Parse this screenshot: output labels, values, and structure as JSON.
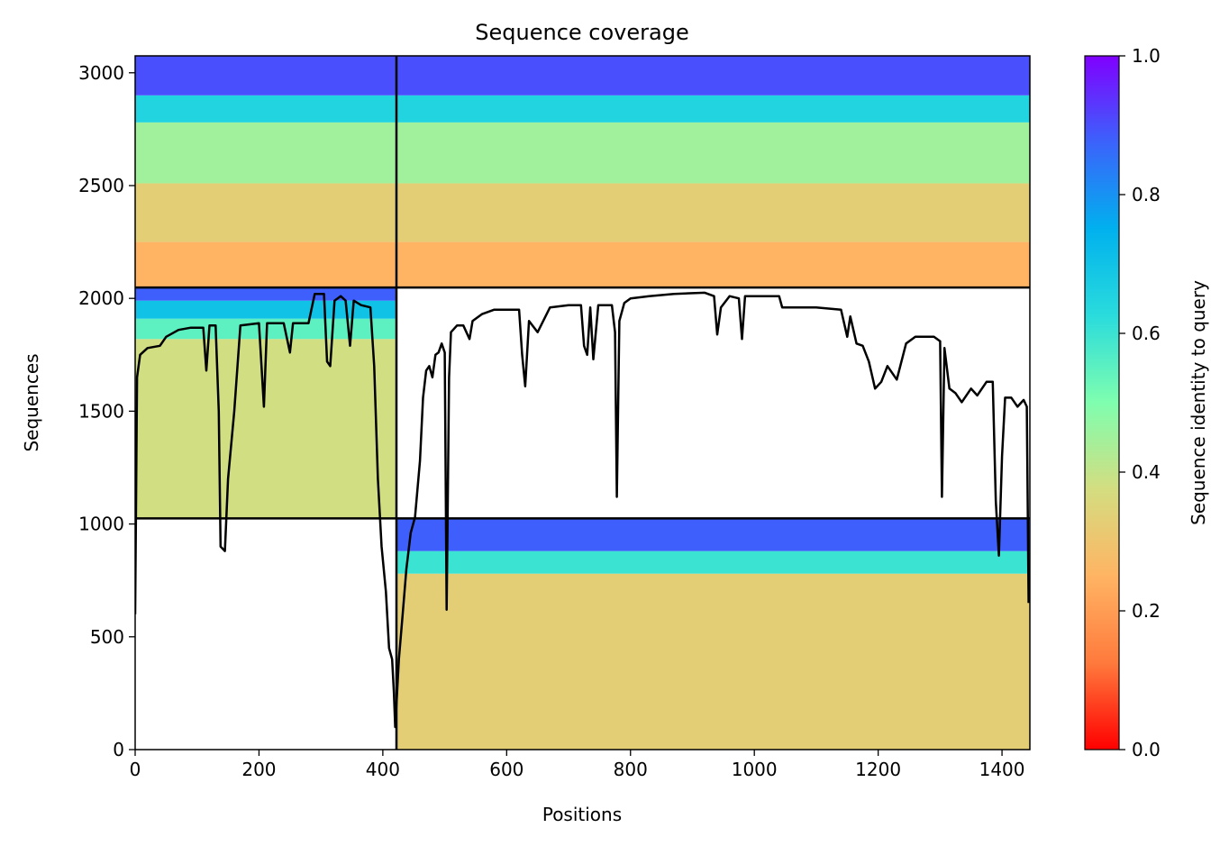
{
  "chart_data": {
    "type": "heatmap",
    "title": "Sequence coverage",
    "xlabel": "Positions",
    "ylabel": "Sequences",
    "xlim": [
      0,
      1445
    ],
    "ylim": [
      0,
      3075
    ],
    "xticks": [
      0,
      200,
      400,
      600,
      800,
      1000,
      1200,
      1400
    ],
    "yticks": [
      0,
      500,
      1000,
      1500,
      2000,
      2500,
      3000
    ],
    "grid": false,
    "colorbar": {
      "label": "Sequence identity to query",
      "range": [
        0,
        1
      ],
      "ticks": [
        0.0,
        0.2,
        0.4,
        0.6,
        0.8,
        1.0
      ],
      "colormap": "rainbow_r",
      "colors": [
        "#ff0000",
        "#ff7a3c",
        "#ffb463",
        "#d4dd80",
        "#7ffeaf",
        "#2adcdc",
        "#00b1ee",
        "#3b63fb",
        "#8000ff"
      ]
    },
    "divider_lines": {
      "color": "#000000",
      "horizontal_y": [
        1025,
        2048
      ],
      "vertical_x": [
        422
      ]
    },
    "blocks": [
      {
        "name": "chain-1-pair",
        "x_range": [
          0,
          422
        ],
        "y_range": [
          1025,
          2048
        ],
        "identity_bands": [
          {
            "y_from": 1025,
            "y_to": 1820,
            "identity": 0.38
          },
          {
            "y_from": 1820,
            "y_to": 1910,
            "identity": 0.55
          },
          {
            "y_from": 1910,
            "y_to": 1990,
            "identity": 0.7
          },
          {
            "y_from": 1990,
            "y_to": 2048,
            "identity": 0.88
          }
        ]
      },
      {
        "name": "chain-2-pair",
        "x_range": [
          422,
          1445
        ],
        "y_range": [
          0,
          1025
        ],
        "identity_bands": [
          {
            "y_from": 0,
            "y_to": 780,
            "identity": 0.33
          },
          {
            "y_from": 780,
            "y_to": 880,
            "identity": 0.6
          },
          {
            "y_from": 880,
            "y_to": 1025,
            "identity": 0.88
          }
        ]
      },
      {
        "name": "paired-block",
        "x_range": [
          0,
          1445
        ],
        "y_range": [
          2048,
          3075
        ],
        "identity_bands": [
          {
            "y_from": 2048,
            "y_to": 2250,
            "identity": 0.25
          },
          {
            "y_from": 2250,
            "y_to": 2510,
            "identity": 0.33
          },
          {
            "y_from": 2510,
            "y_to": 2780,
            "identity": 0.45
          },
          {
            "y_from": 2780,
            "y_to": 2900,
            "identity": 0.65
          },
          {
            "y_from": 2900,
            "y_to": 3075,
            "identity": 0.9
          }
        ]
      }
    ],
    "coverage_line": {
      "color": "#000000",
      "points": [
        [
          0,
          600
        ],
        [
          3,
          1650
        ],
        [
          8,
          1750
        ],
        [
          20,
          1780
        ],
        [
          40,
          1790
        ],
        [
          50,
          1830
        ],
        [
          70,
          1860
        ],
        [
          90,
          1870
        ],
        [
          110,
          1870
        ],
        [
          115,
          1680
        ],
        [
          120,
          1880
        ],
        [
          130,
          1880
        ],
        [
          135,
          1500
        ],
        [
          138,
          900
        ],
        [
          145,
          880
        ],
        [
          150,
          1200
        ],
        [
          160,
          1500
        ],
        [
          170,
          1880
        ],
        [
          200,
          1890
        ],
        [
          208,
          1520
        ],
        [
          213,
          1890
        ],
        [
          240,
          1890
        ],
        [
          250,
          1760
        ],
        [
          255,
          1890
        ],
        [
          280,
          1890
        ],
        [
          290,
          2020
        ],
        [
          305,
          2020
        ],
        [
          310,
          1720
        ],
        [
          315,
          1700
        ],
        [
          322,
          1990
        ],
        [
          332,
          2010
        ],
        [
          340,
          1990
        ],
        [
          347,
          1790
        ],
        [
          353,
          1990
        ],
        [
          365,
          1970
        ],
        [
          380,
          1960
        ],
        [
          386,
          1700
        ],
        [
          392,
          1200
        ],
        [
          398,
          900
        ],
        [
          405,
          700
        ],
        [
          410,
          450
        ],
        [
          415,
          400
        ],
        [
          418,
          250
        ],
        [
          420,
          100
        ],
        [
          422,
          200
        ],
        [
          426,
          400
        ],
        [
          432,
          600
        ],
        [
          438,
          800
        ],
        [
          445,
          960
        ],
        [
          452,
          1030
        ],
        [
          460,
          1280
        ],
        [
          465,
          1560
        ],
        [
          470,
          1680
        ],
        [
          475,
          1700
        ],
        [
          480,
          1650
        ],
        [
          485,
          1750
        ],
        [
          490,
          1760
        ],
        [
          495,
          1800
        ],
        [
          500,
          1760
        ],
        [
          503,
          620
        ],
        [
          507,
          1650
        ],
        [
          510,
          1850
        ],
        [
          520,
          1880
        ],
        [
          530,
          1880
        ],
        [
          540,
          1820
        ],
        [
          545,
          1900
        ],
        [
          560,
          1930
        ],
        [
          580,
          1950
        ],
        [
          620,
          1950
        ],
        [
          625,
          1750
        ],
        [
          630,
          1610
        ],
        [
          636,
          1900
        ],
        [
          650,
          1850
        ],
        [
          670,
          1960
        ],
        [
          700,
          1970
        ],
        [
          720,
          1970
        ],
        [
          725,
          1790
        ],
        [
          730,
          1750
        ],
        [
          735,
          1960
        ],
        [
          740,
          1730
        ],
        [
          748,
          1970
        ],
        [
          770,
          1970
        ],
        [
          775,
          1850
        ],
        [
          778,
          1120
        ],
        [
          782,
          1900
        ],
        [
          790,
          1980
        ],
        [
          800,
          2000
        ],
        [
          830,
          2010
        ],
        [
          870,
          2020
        ],
        [
          920,
          2025
        ],
        [
          935,
          2010
        ],
        [
          940,
          1840
        ],
        [
          946,
          1960
        ],
        [
          960,
          2010
        ],
        [
          975,
          2000
        ],
        [
          980,
          1820
        ],
        [
          985,
          2010
        ],
        [
          1040,
          2010
        ],
        [
          1045,
          1960
        ],
        [
          1100,
          1960
        ],
        [
          1140,
          1950
        ],
        [
          1150,
          1830
        ],
        [
          1155,
          1920
        ],
        [
          1165,
          1800
        ],
        [
          1175,
          1790
        ],
        [
          1185,
          1720
        ],
        [
          1195,
          1600
        ],
        [
          1205,
          1630
        ],
        [
          1215,
          1700
        ],
        [
          1230,
          1640
        ],
        [
          1245,
          1800
        ],
        [
          1260,
          1830
        ],
        [
          1290,
          1830
        ],
        [
          1300,
          1810
        ],
        [
          1303,
          1120
        ],
        [
          1307,
          1780
        ],
        [
          1315,
          1600
        ],
        [
          1325,
          1580
        ],
        [
          1335,
          1540
        ],
        [
          1350,
          1600
        ],
        [
          1360,
          1570
        ],
        [
          1375,
          1630
        ],
        [
          1385,
          1630
        ],
        [
          1390,
          1100
        ],
        [
          1395,
          860
        ],
        [
          1400,
          1300
        ],
        [
          1405,
          1560
        ],
        [
          1415,
          1560
        ],
        [
          1425,
          1520
        ],
        [
          1435,
          1550
        ],
        [
          1440,
          1520
        ],
        [
          1443,
          650
        ]
      ]
    }
  }
}
